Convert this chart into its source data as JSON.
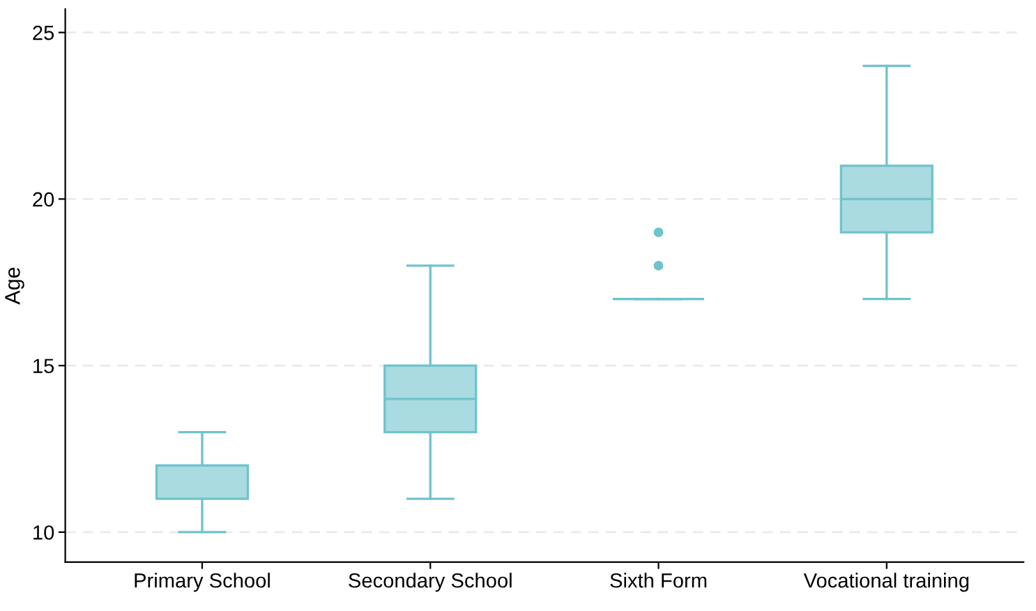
{
  "chart_data": {
    "type": "box",
    "ylabel": "Age",
    "categories": [
      "Primary School",
      "Secondary School",
      "Sixth Form",
      "Vocational training"
    ],
    "boxes": [
      {
        "low": 10,
        "q1": 11,
        "median": 12,
        "q3": 12,
        "high": 13
      },
      {
        "low": 11,
        "q1": 13,
        "median": 14,
        "q3": 15,
        "high": 18
      },
      {
        "low": 17,
        "q1": 17,
        "median": 17,
        "q3": 17,
        "high": 17,
        "outliers": [
          18,
          19
        ]
      },
      {
        "low": 17,
        "q1": 19,
        "median": 20,
        "q3": 21,
        "high": 24
      }
    ],
    "color": "#6fc3cd",
    "ylim": [
      9.1,
      25.7
    ],
    "yticks": [
      10,
      15,
      20,
      25
    ],
    "grid": "y"
  }
}
